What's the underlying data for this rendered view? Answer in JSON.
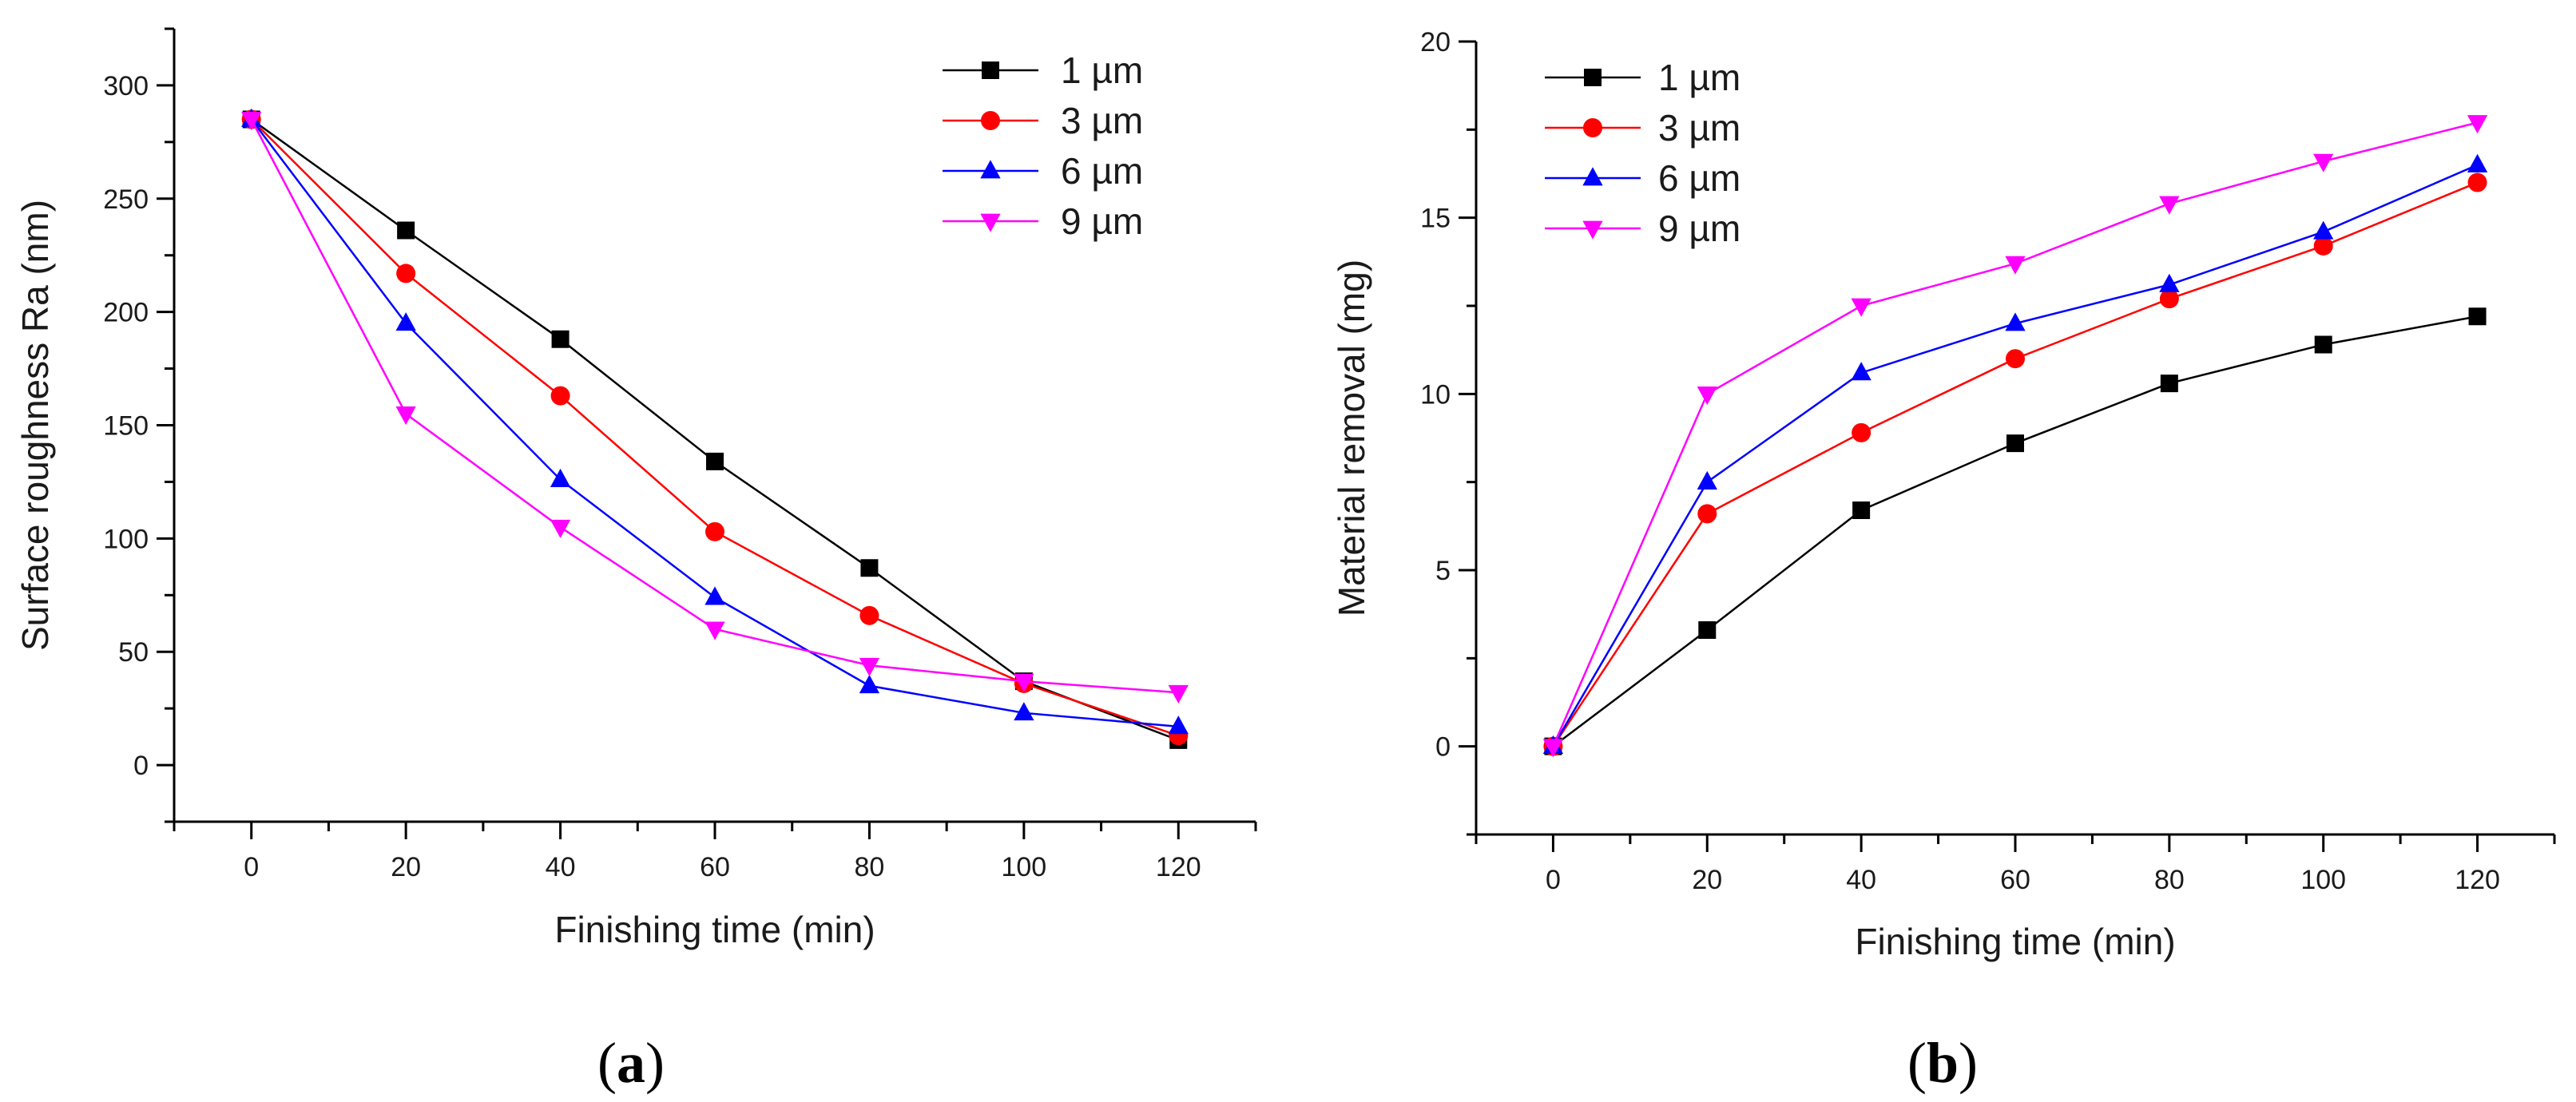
{
  "chart_data": [
    {
      "type": "line",
      "panel_label": "a",
      "xlabel": "Finishing time (min)",
      "ylabel": "Surface roughness Ra (nm)",
      "xlim": [
        -10,
        130
      ],
      "ylim": [
        -25,
        325
      ],
      "xticks": [
        0,
        20,
        40,
        60,
        80,
        100,
        120
      ],
      "yticks": [
        0,
        50,
        100,
        150,
        200,
        250,
        300
      ],
      "x": [
        0,
        20,
        40,
        60,
        80,
        100,
        120
      ],
      "legend_position": "top-right",
      "series": [
        {
          "name": "1 µm",
          "color": "#000000",
          "marker": "square",
          "values": [
            285,
            236,
            188,
            134,
            87,
            37,
            11
          ]
        },
        {
          "name": "3 µm",
          "color": "#ff0000",
          "marker": "circle",
          "values": [
            285,
            217,
            163,
            103,
            66,
            36,
            13
          ]
        },
        {
          "name": "6 µm",
          "color": "#0000ff",
          "marker": "triangle-up",
          "values": [
            285,
            195,
            126,
            74,
            35,
            23,
            17
          ]
        },
        {
          "name": "9 µm",
          "color": "#ff00ff",
          "marker": "triangle-down",
          "values": [
            285,
            155,
            105,
            60,
            44,
            37,
            32
          ]
        }
      ]
    },
    {
      "type": "line",
      "panel_label": "b",
      "xlabel": "Finishing time (min)",
      "ylabel": "Material removal (mg)",
      "xlim": [
        -10,
        130
      ],
      "ylim": [
        -2.5,
        20
      ],
      "xticks": [
        0,
        20,
        40,
        60,
        80,
        100,
        120
      ],
      "yticks": [
        0,
        5,
        10,
        15,
        20
      ],
      "x": [
        0,
        20,
        40,
        60,
        80,
        100,
        120
      ],
      "legend_position": "top-left",
      "series": [
        {
          "name": "1 µm",
          "color": "#000000",
          "marker": "square",
          "values": [
            0,
            3.3,
            6.7,
            8.6,
            10.3,
            11.4,
            12.2
          ]
        },
        {
          "name": "3 µm",
          "color": "#ff0000",
          "marker": "circle",
          "values": [
            0,
            6.6,
            8.9,
            11.0,
            12.7,
            14.2,
            16.0
          ]
        },
        {
          "name": "6 µm",
          "color": "#0000ff",
          "marker": "triangle-up",
          "values": [
            0,
            7.5,
            10.6,
            12.0,
            13.1,
            14.6,
            16.5
          ]
        },
        {
          "name": "9 µm",
          "color": "#ff00ff",
          "marker": "triangle-down",
          "values": [
            0,
            10.0,
            12.5,
            13.7,
            15.4,
            16.6,
            17.7
          ]
        }
      ]
    }
  ]
}
